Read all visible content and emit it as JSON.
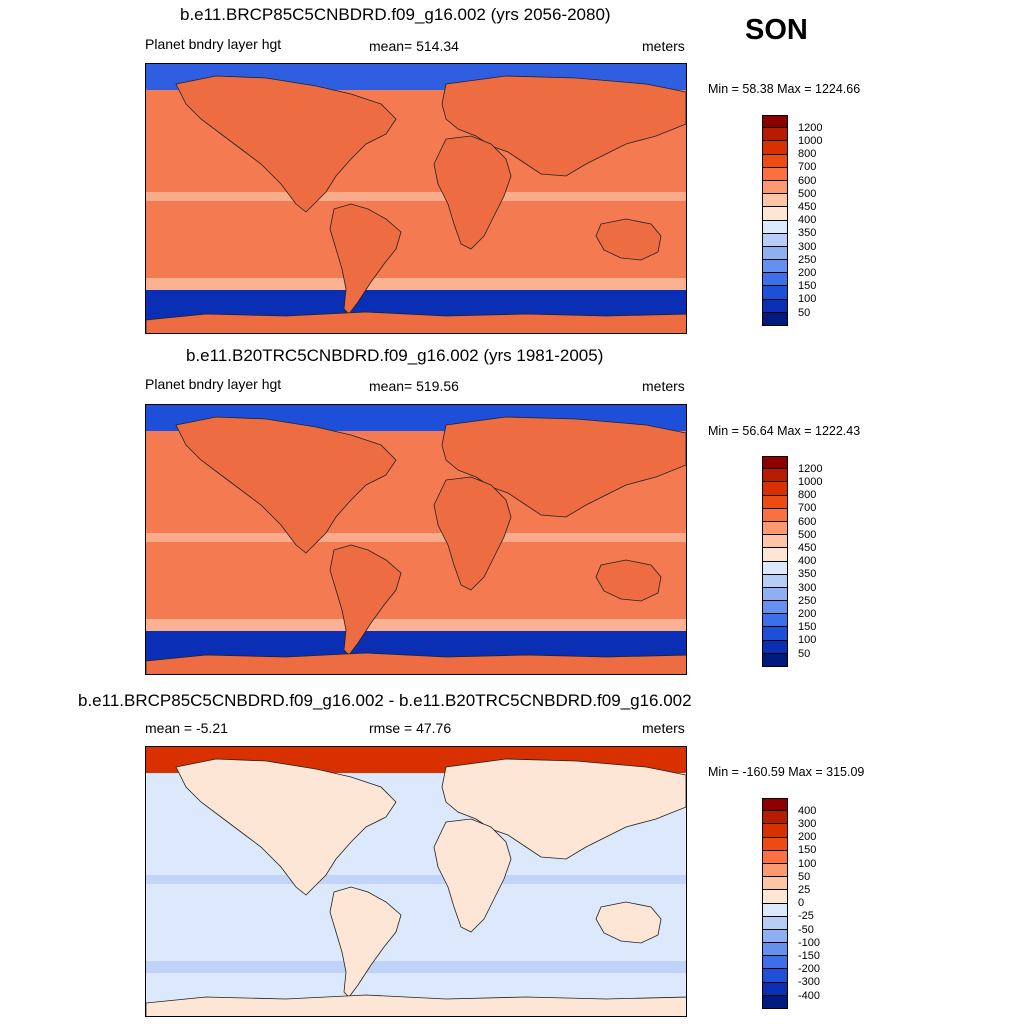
{
  "season": "SON",
  "panels": [
    {
      "title": "b.e11.BRCP85C5CNBDRD.f09_g16.002 (yrs 2056-2080)",
      "left_label": "Planet bndry layer hgt",
      "center_label": "mean= 514.34",
      "right_label": "meters",
      "minmax": "Min =  58.38 Max = 1224.66",
      "colorbar": {
        "levels": [
          "1200",
          "1000",
          "800",
          "700",
          "600",
          "500",
          "450",
          "400",
          "350",
          "300",
          "250",
          "200",
          "150",
          "100",
          "50"
        ],
        "colors": [
          "#8c0000",
          "#b81c00",
          "#d93000",
          "#ee4a14",
          "#fa7040",
          "#fb9a70",
          "#fdc4a6",
          "#fde6d6",
          "#dce8fb",
          "#b7cdf6",
          "#8eb0f2",
          "#6590ee",
          "#3d6fe8",
          "#1e4fd8",
          "#0a2fb4",
          "#001a80"
        ]
      },
      "map_palette": {
        "ocean": "#f47a52",
        "land": "#ee6c42",
        "polar_n": "#2f5fe0",
        "polar_s": "#0a2fb4",
        "stripe": "#fcc1a4"
      }
    },
    {
      "title": "b.e11.B20TRC5CNBDRD.f09_g16.002 (yrs 1981-2005)",
      "left_label": "Planet bndry layer hgt",
      "center_label": "mean= 519.56",
      "right_label": "meters",
      "minmax": "Min =  56.64 Max = 1222.43",
      "colorbar": {
        "levels": [
          "1200",
          "1000",
          "800",
          "700",
          "600",
          "500",
          "450",
          "400",
          "350",
          "300",
          "250",
          "200",
          "150",
          "100",
          "50"
        ],
        "colors": [
          "#8c0000",
          "#b81c00",
          "#d93000",
          "#ee4a14",
          "#fa7040",
          "#fb9a70",
          "#fdc4a6",
          "#fde6d6",
          "#dce8fb",
          "#b7cdf6",
          "#8eb0f2",
          "#6590ee",
          "#3d6fe8",
          "#1e4fd8",
          "#0a2fb4",
          "#001a80"
        ]
      },
      "map_palette": {
        "ocean": "#f47a52",
        "land": "#ee6c42",
        "polar_n": "#1e4fd8",
        "polar_s": "#0a2fb4",
        "stripe": "#fcc1a4"
      }
    },
    {
      "title": "b.e11.BRCP85C5CNBDRD.f09_g16.002 - b.e11.B20TRC5CNBDRD.f09_g16.002",
      "left_label": "mean =  -5.21",
      "center_label": "rmse =  47.76",
      "right_label": "meters",
      "minmax": "Min = -160.59 Max = 315.09",
      "colorbar": {
        "levels": [
          "400",
          "300",
          "200",
          "150",
          "100",
          "50",
          "25",
          "0",
          "-25",
          "-50",
          "-100",
          "-150",
          "-200",
          "-300",
          "-400"
        ],
        "colors": [
          "#8c0000",
          "#b81c00",
          "#d93000",
          "#ee4a14",
          "#fa7040",
          "#fb9a70",
          "#fdc4a6",
          "#fde6d6",
          "#dce8fb",
          "#b7cdf6",
          "#8eb0f2",
          "#6590ee",
          "#3d6fe8",
          "#1e4fd8",
          "#0a2fb4",
          "#001a80"
        ]
      },
      "map_palette": {
        "ocean": "#dce8fb",
        "land": "#fde6d6",
        "polar_n": "#d93000",
        "polar_s": "#dce8fb",
        "stripe": "#b7cdf6"
      }
    }
  ],
  "chart_data": {
    "type": "heatmap",
    "fields": [
      {
        "field": "Planet bndry layer hgt",
        "units": "meters",
        "mean": 514.34,
        "min": 58.38,
        "max": 1224.66
      },
      {
        "field": "Planet bndry layer hgt",
        "units": "meters",
        "mean": 519.56,
        "min": 56.64,
        "max": 1222.43
      },
      {
        "mean": -5.21,
        "rmse": 47.76,
        "units": "meters",
        "min": -160.59,
        "max": 315.09
      }
    ]
  }
}
